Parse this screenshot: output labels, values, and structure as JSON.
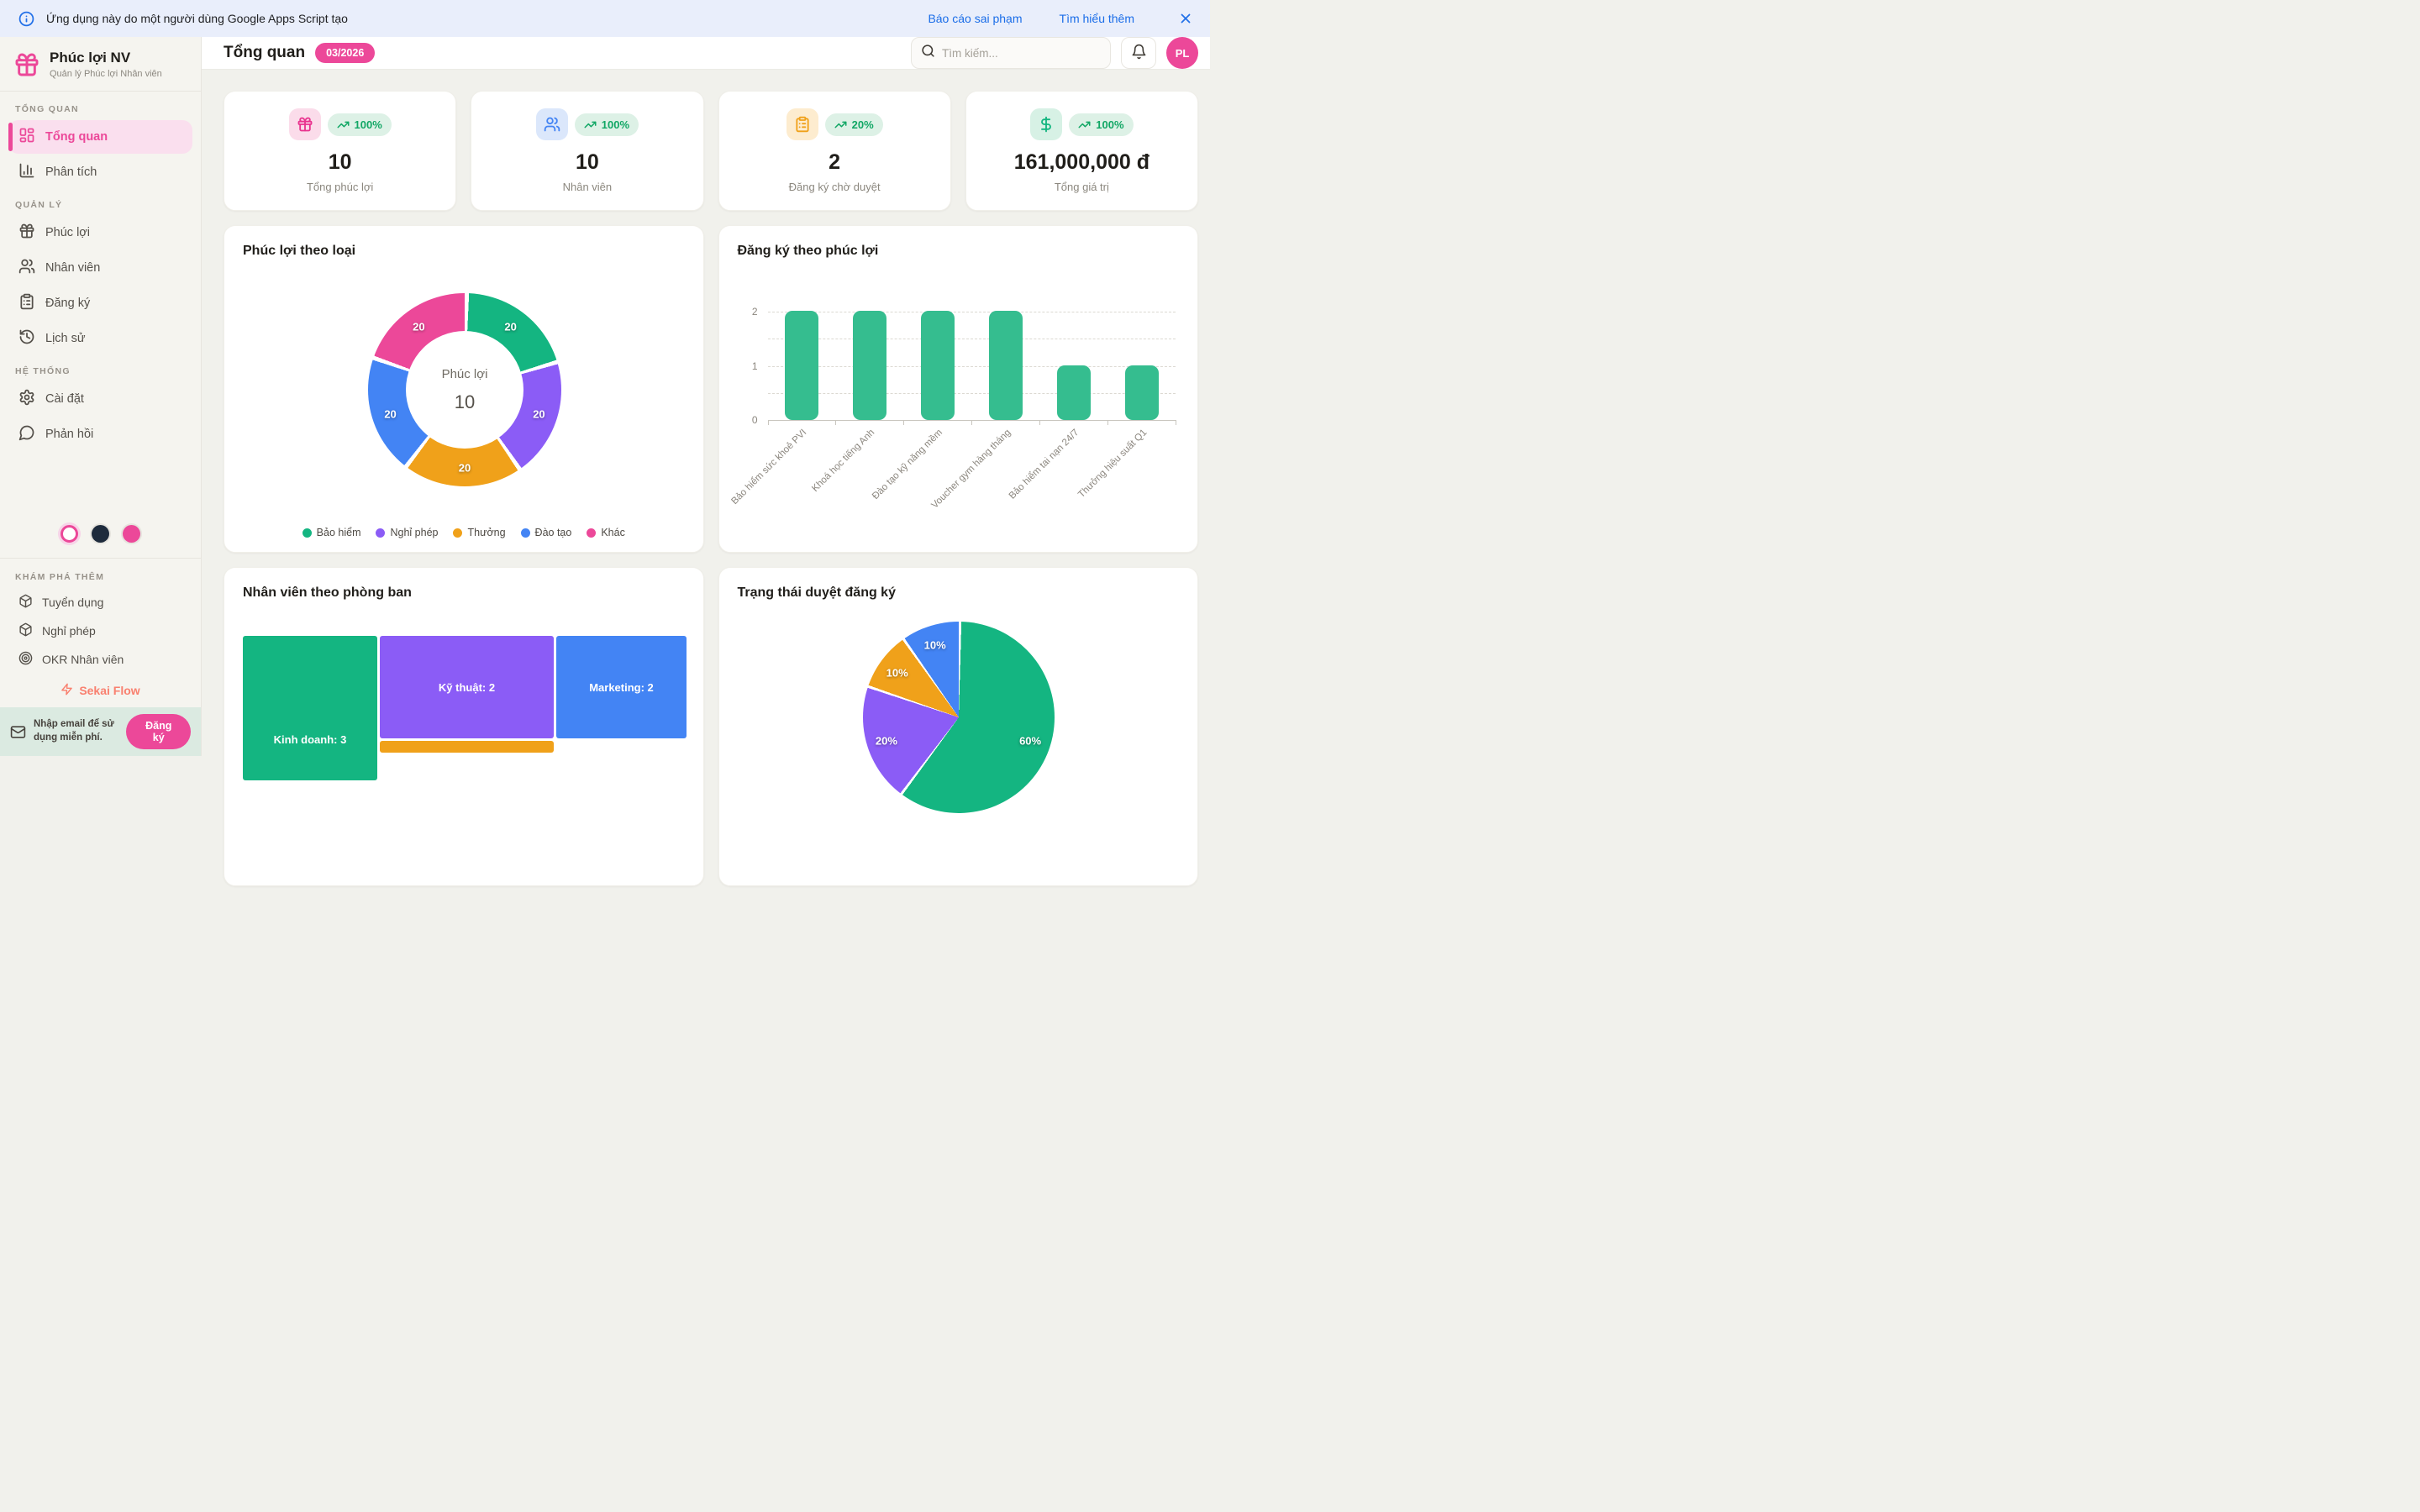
{
  "banner": {
    "message": "Ứng dụng này do một người dùng Google Apps Script tạo",
    "report_link": "Báo cáo sai phạm",
    "learn_more_link": "Tìm hiểu thêm"
  },
  "sidebar": {
    "app_name": "Phúc lợi NV",
    "app_subtitle": "Quản lý Phúc lợi Nhân viên",
    "sections": [
      {
        "label": "TỔNG QUAN",
        "items": [
          {
            "label": "Tổng quan"
          },
          {
            "label": "Phân tích"
          }
        ]
      },
      {
        "label": "QUẢN LÝ",
        "items": [
          {
            "label": "Phúc lợi"
          },
          {
            "label": "Nhân viên"
          },
          {
            "label": "Đăng ký"
          },
          {
            "label": "Lịch sử"
          }
        ]
      },
      {
        "label": "HỆ THỐNG",
        "items": [
          {
            "label": "Cài đặt"
          },
          {
            "label": "Phản hồi"
          }
        ]
      }
    ],
    "discover": {
      "label": "KHÁM PHÁ THÊM",
      "items": [
        {
          "label": "Tuyển dụng"
        },
        {
          "label": "Nghỉ phép"
        },
        {
          "label": "OKR Nhân viên"
        }
      ]
    },
    "brand_link": "Sekai Flow",
    "email_cta": {
      "text": "Nhập email để sử dụng miễn phí.",
      "button": "Đăng ký"
    }
  },
  "header": {
    "title": "Tổng quan",
    "period_badge": "03/2026",
    "search_placeholder": "Tìm kiếm...",
    "avatar_initials": "PL"
  },
  "stats": [
    {
      "value": "10",
      "label": "Tổng phúc lợi",
      "trend": "100%",
      "icon": "gift-icon",
      "icon_color": "#e9348f",
      "icon_bg": "#fbdcea"
    },
    {
      "value": "10",
      "label": "Nhân viên",
      "trend": "100%",
      "icon": "users-icon",
      "icon_color": "#4384f4",
      "icon_bg": "#dbe7fb"
    },
    {
      "value": "2",
      "label": "Đăng ký chờ duyệt",
      "trend": "20%",
      "icon": "clipboard-icon",
      "icon_color": "#f0a11a",
      "icon_bg": "#fdeccf"
    },
    {
      "value": "161,000,000 đ",
      "label": "Tổng giá trị",
      "trend": "100%",
      "icon": "dollar-icon",
      "icon_color": "#13b57f",
      "icon_bg": "#d7f1e5"
    }
  ],
  "accent_colors": {
    "primary_pink": "#ec4899",
    "trend_green": "#12a765"
  },
  "chart_data": [
    {
      "type": "donut",
      "title": "Phúc lợi theo loại",
      "center_label": "Phúc lợi",
      "center_value": "10",
      "categories": [
        "Bảo hiểm",
        "Nghỉ phép",
        "Thưởng",
        "Đào tạo",
        "Khác"
      ],
      "values": [
        20,
        20,
        20,
        20,
        20
      ],
      "colors": [
        "#14b581",
        "#8b5cf6",
        "#f0a11a",
        "#4384f4",
        "#ec4899"
      ],
      "legend_position": "bottom"
    },
    {
      "type": "bar",
      "title": "Đăng ký theo phúc lợi",
      "categories": [
        "Bảo hiểm sức khoẻ PVI",
        "Khoá học tiếng Anh",
        "Đào tạo kỹ năng mềm",
        "Voucher gym hàng tháng",
        "Bảo hiểm tai nạn 24/7",
        "Thưởng hiệu suất Q1"
      ],
      "values": [
        2,
        2,
        2,
        2,
        1,
        1
      ],
      "bar_color": "#35bd8f",
      "yticks": [
        "2",
        "1",
        "0"
      ],
      "ylim": [
        0,
        2
      ],
      "grid": "dashed-horizontal"
    },
    {
      "type": "treemap",
      "title": "Nhân viên theo phòng ban",
      "items": [
        {
          "label": "Kinh doanh: 3",
          "value": 3,
          "color": "#14b581"
        },
        {
          "label": "Kỹ thuật: 2",
          "value": 2,
          "color": "#8b5cf6"
        },
        {
          "label": "Marketing: 2",
          "value": 2,
          "color": "#4384f4"
        },
        {
          "label": "",
          "color": "#f0a11a"
        }
      ]
    },
    {
      "type": "pie",
      "title": "Trạng thái duyệt đăng ký",
      "values": [
        60,
        20,
        10,
        10
      ],
      "labels": [
        "60%",
        "20%",
        "10%",
        "10%"
      ],
      "colors": [
        "#14b581",
        "#8b5cf6",
        "#f0a11a",
        "#4384f4"
      ]
    }
  ]
}
